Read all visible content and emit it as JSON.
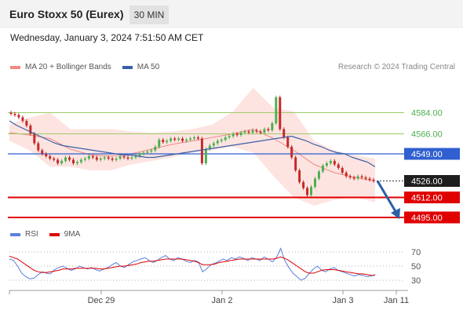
{
  "header": {
    "title": "Euro Stoxx 50 (Eurex)",
    "timeframe": "30 MIN"
  },
  "datetime": "Wednesday, January 3, 2024 7:51:50 AM CET",
  "legend_main": [
    {
      "label": "MA 20 + Bollinger Bands",
      "color": "#f08a80"
    },
    {
      "label": "MA 50",
      "color": "#3a5fa8"
    }
  ],
  "credit": "Research © 2024 Trading Central",
  "legend_rsi": [
    {
      "label": "RSI",
      "color": "#5b7fe0"
    },
    {
      "label": "9MA",
      "color": "#e00000"
    }
  ],
  "chart_data": {
    "type": "candlestick",
    "x_ticks": [
      "Dec 29",
      "Jan 2",
      "Jan 3",
      "Jan 11"
    ],
    "price_range": [
      4485,
      4613
    ],
    "levels": [
      {
        "value": 4584.0,
        "label": "4584.00",
        "kind": "green"
      },
      {
        "value": 4566.0,
        "label": "4566.00",
        "kind": "green"
      },
      {
        "value": 4549.0,
        "label": "4549.00",
        "kind": "blue"
      },
      {
        "value": 4526.0,
        "label": "4526.00",
        "kind": "current"
      },
      {
        "value": 4512.0,
        "label": "4512.00",
        "kind": "red"
      },
      {
        "value": 4495.0,
        "label": "4495.00",
        "kind": "red"
      }
    ],
    "close_series": [
      4583,
      4582,
      4580,
      4577,
      4573,
      4566,
      4558,
      4552,
      4549,
      4547,
      4545,
      4544,
      4541,
      4543,
      4546,
      4544,
      4541,
      4542,
      4544,
      4545,
      4547,
      4546,
      4544,
      4545,
      4546,
      4545,
      4544,
      4545,
      4547,
      4546,
      4545,
      4546,
      4547,
      4549,
      4550,
      4551,
      4552,
      4555,
      4561,
      4559,
      4560,
      4562,
      4561,
      4562,
      4560,
      4561,
      4562,
      4563,
      4562,
      4541,
      4553,
      4556,
      4558,
      4560,
      4561,
      4563,
      4564,
      4566,
      4565,
      4567,
      4568,
      4567,
      4569,
      4568,
      4567,
      4570,
      4569,
      4575,
      4597,
      4570,
      4563,
      4555,
      4546,
      4535,
      4525,
      4520,
      4514,
      4521,
      4528,
      4534,
      4539,
      4541,
      4543,
      4540,
      4537,
      4533,
      4530,
      4529,
      4528,
      4530,
      4529,
      4528,
      4527,
      4526
    ],
    "ma50": [
      4577,
      4573,
      4570,
      4567,
      4564,
      4561,
      4558,
      4556,
      4555,
      4554,
      4553,
      4552,
      4551,
      4550,
      4549,
      4548,
      4548,
      4547,
      4546,
      4546,
      4547,
      4548,
      4549,
      4550,
      4551,
      4552,
      4553,
      4554,
      4555,
      4556,
      4557,
      4558,
      4559,
      4560,
      4561,
      4562,
      4563,
      4564,
      4562,
      4560,
      4557,
      4555,
      4552,
      4550,
      4549,
      4546,
      4544,
      4542,
      4538
    ],
    "ma20_bands": {
      "upper": [
        4574,
        4580,
        4584,
        4570,
        4570,
        4570,
        4568,
        4567,
        4568,
        4570,
        4574,
        4585,
        4605,
        4588,
        4585,
        4560,
        4552,
        4548,
        4545
      ],
      "middle": [
        4567,
        4565,
        4562,
        4553,
        4548,
        4547,
        4549,
        4553,
        4557,
        4560,
        4563,
        4566,
        4570,
        4562,
        4552,
        4540,
        4533,
        4529,
        4526
      ],
      "lower": [
        4560,
        4552,
        4538,
        4538,
        4535,
        4535,
        4540,
        4543,
        4546,
        4550,
        4552,
        4555,
        4550,
        4530,
        4512,
        4505,
        4510,
        4512,
        4508
      ]
    },
    "forecast": {
      "from": 4526,
      "to": 4495
    },
    "rsi": {
      "ticks": [
        70,
        50,
        30
      ],
      "range": [
        20,
        80
      ],
      "rsi": [
        60,
        58,
        50,
        40,
        35,
        32,
        33,
        38,
        42,
        40,
        39,
        45,
        48,
        50,
        47,
        44,
        46,
        50,
        48,
        46,
        48,
        45,
        43,
        46,
        48,
        52,
        55,
        50,
        48,
        52,
        56,
        58,
        60,
        62,
        58,
        55,
        58,
        62,
        65,
        60,
        58,
        62,
        60,
        57,
        55,
        58,
        56,
        42,
        46,
        52,
        54,
        57,
        60,
        58,
        62,
        60,
        63,
        61,
        58,
        62,
        60,
        58,
        63,
        60,
        56,
        62,
        75,
        58,
        48,
        40,
        35,
        30,
        33,
        40,
        46,
        50,
        44,
        42,
        46,
        48,
        44,
        42,
        40,
        38,
        36,
        38,
        37,
        35,
        36,
        38
      ],
      "ma9": [
        64,
        62,
        60,
        56,
        52,
        48,
        44,
        42,
        41,
        41,
        42,
        43,
        44,
        46,
        46,
        46,
        47,
        47,
        47,
        47,
        47,
        47,
        46,
        46,
        47,
        48,
        49,
        50,
        50,
        51,
        52,
        53,
        55,
        56,
        57,
        57,
        58,
        59,
        60,
        60,
        60,
        60,
        60,
        59,
        58,
        57,
        55,
        52,
        52,
        52,
        53,
        55,
        56,
        57,
        58,
        59,
        60,
        60,
        60,
        60,
        60,
        60,
        60,
        60,
        60,
        61,
        63,
        61,
        58,
        54,
        50,
        46,
        42,
        40,
        40,
        42,
        44,
        45,
        45,
        45,
        44,
        43,
        42,
        41,
        40,
        39,
        39,
        38,
        37,
        37
      ]
    }
  }
}
